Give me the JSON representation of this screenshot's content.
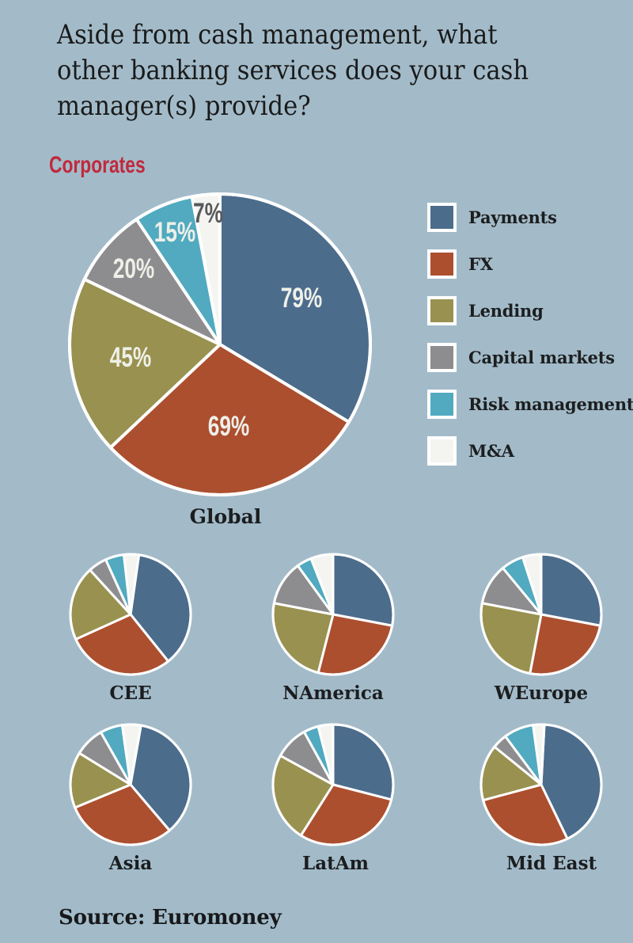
{
  "title": "Aside from cash management, what other banking services does your cash manager(s) provide?",
  "title_lines": [
    "Aside from cash management, what",
    "other banking services does your cash",
    "manager(s) provide?"
  ],
  "subtitle": "Corporates",
  "source": "Source: Euromoney",
  "colors": {
    "background": "#a3bbc9",
    "title_text": "#1a1b1b",
    "subtitle_red": "#c0293d",
    "label_text": "#1b1d1f",
    "slice_label": "#eef0e8",
    "mna_label": "#58595b",
    "slice_stroke": "#ffffff",
    "payments_blue": "#4c6c8c",
    "fx_rust": "#ac4f2f",
    "lending_olive": "#99914f",
    "capital_markets_gray": "#8d8d8f",
    "risk_teal": "#51aabf",
    "mna_white": "#f4f5f1"
  },
  "legend": [
    {
      "label": "Payments",
      "color": "#4c6c8c"
    },
    {
      "label": "FX",
      "color": "#ac4f2f"
    },
    {
      "label": "Lending",
      "color": "#99914f"
    },
    {
      "label": "Capital markets",
      "color": "#8d8d8f"
    },
    {
      "label": "Risk management",
      "color": "#51aabf"
    },
    {
      "label": "M&A",
      "color": "#f4f5f1"
    }
  ],
  "chart_data": [
    {
      "type": "pie",
      "title": "Global",
      "categories": [
        "Payments",
        "FX",
        "Lending",
        "Capital markets",
        "Risk management",
        "M&A"
      ],
      "values": [
        79,
        69,
        45,
        20,
        15,
        7
      ],
      "value_labels": [
        "79%",
        "69%",
        "45%",
        "20%",
        "15%",
        "7%"
      ],
      "unit": "%",
      "labels_visible": true,
      "note": "multi-select survey percentages; slice angles proportional to value/sum(values)"
    },
    {
      "type": "pie",
      "title": "CEE",
      "categories": [
        "Payments",
        "FX",
        "Lending",
        "Capital markets",
        "Risk management",
        "M&A"
      ],
      "estimated_shares_pct": [
        37,
        29,
        20,
        5,
        5,
        4
      ],
      "labels_visible": false
    },
    {
      "type": "pie",
      "title": "NAmerica",
      "categories": [
        "Payments",
        "FX",
        "Lending",
        "Capital markets",
        "Risk management",
        "M&A"
      ],
      "estimated_shares_pct": [
        28,
        26,
        24,
        12,
        4,
        6
      ],
      "labels_visible": false
    },
    {
      "type": "pie",
      "title": "WEurope",
      "categories": [
        "Payments",
        "FX",
        "Lending",
        "Capital markets",
        "Risk management",
        "M&A"
      ],
      "estimated_shares_pct": [
        28,
        25,
        25,
        11,
        6,
        5
      ],
      "labels_visible": false
    },
    {
      "type": "pie",
      "title": "Asia",
      "categories": [
        "Payments",
        "FX",
        "Lending",
        "Capital markets",
        "Risk management",
        "M&A"
      ],
      "estimated_shares_pct": [
        36,
        30,
        15,
        8,
        6,
        5
      ],
      "labels_visible": false
    },
    {
      "type": "pie",
      "title": "LatAm",
      "categories": [
        "Payments",
        "FX",
        "Lending",
        "Capital markets",
        "Risk management",
        "M&A"
      ],
      "estimated_shares_pct": [
        29,
        30,
        24,
        9,
        4,
        4
      ],
      "labels_visible": false
    },
    {
      "type": "pie",
      "title": "Mid East",
      "categories": [
        "Payments",
        "FX",
        "Lending",
        "Capital markets",
        "Risk management",
        "M&A"
      ],
      "estimated_shares_pct": [
        42,
        28,
        15,
        4,
        8,
        3
      ],
      "labels_visible": false
    }
  ]
}
